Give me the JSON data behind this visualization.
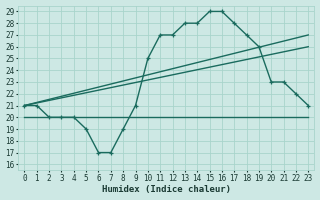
{
  "xlabel": "Humidex (Indice chaleur)",
  "bg_color": "#cde8e4",
  "grid_color": "#a8d4cc",
  "line_color": "#1a6b5e",
  "xlim": [
    -0.5,
    23.5
  ],
  "ylim": [
    15.5,
    29.5
  ],
  "xticks": [
    0,
    1,
    2,
    3,
    4,
    5,
    6,
    7,
    8,
    9,
    10,
    11,
    12,
    13,
    14,
    15,
    16,
    17,
    18,
    19,
    20,
    21,
    22,
    23
  ],
  "yticks": [
    16,
    17,
    18,
    19,
    20,
    21,
    22,
    23,
    24,
    25,
    26,
    27,
    28,
    29
  ],
  "series1_x": [
    0,
    1,
    2,
    3,
    4,
    5,
    6,
    7,
    8,
    9,
    10,
    11,
    12,
    13,
    14,
    15,
    16,
    17,
    18,
    19,
    20,
    21,
    22,
    23
  ],
  "series1_y": [
    21,
    21,
    20,
    20,
    20,
    19,
    17,
    17,
    19,
    21,
    25,
    27,
    27,
    28,
    28,
    29,
    29,
    28,
    27,
    26,
    23,
    23,
    22,
    21
  ],
  "series2_x": [
    0,
    23
  ],
  "series2_y": [
    20,
    20
  ],
  "series3_x": [
    0,
    23
  ],
  "series3_y": [
    21,
    27
  ],
  "series4_x": [
    0,
    23
  ],
  "series4_y": [
    21,
    26
  ]
}
